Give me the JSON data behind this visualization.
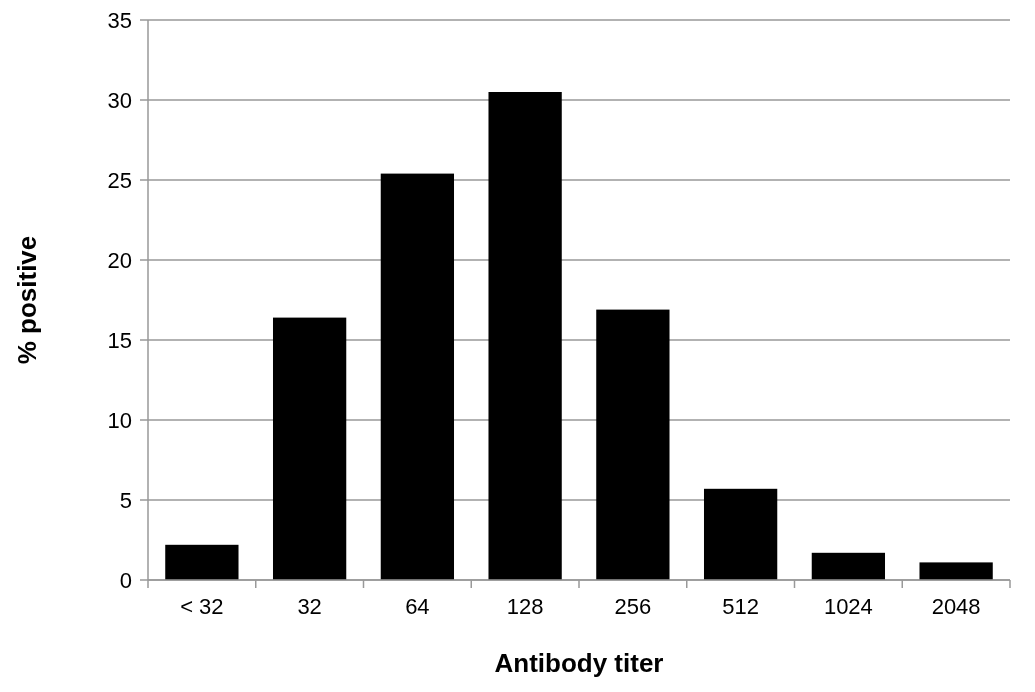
{
  "chart_data": {
    "type": "bar",
    "xlabel": "Antibody titer",
    "ylabel": "% positive",
    "categories": [
      "< 32",
      "32",
      "64",
      "128",
      "256",
      "512",
      "1024",
      "2048"
    ],
    "values": [
      2.2,
      16.4,
      25.4,
      30.5,
      16.9,
      5.7,
      1.7,
      1.1
    ],
    "color": "#000000",
    "ylim": [
      0,
      35
    ],
    "yticks": [
      0,
      5,
      10,
      15,
      20,
      25,
      30,
      35
    ],
    "grid": "y"
  }
}
